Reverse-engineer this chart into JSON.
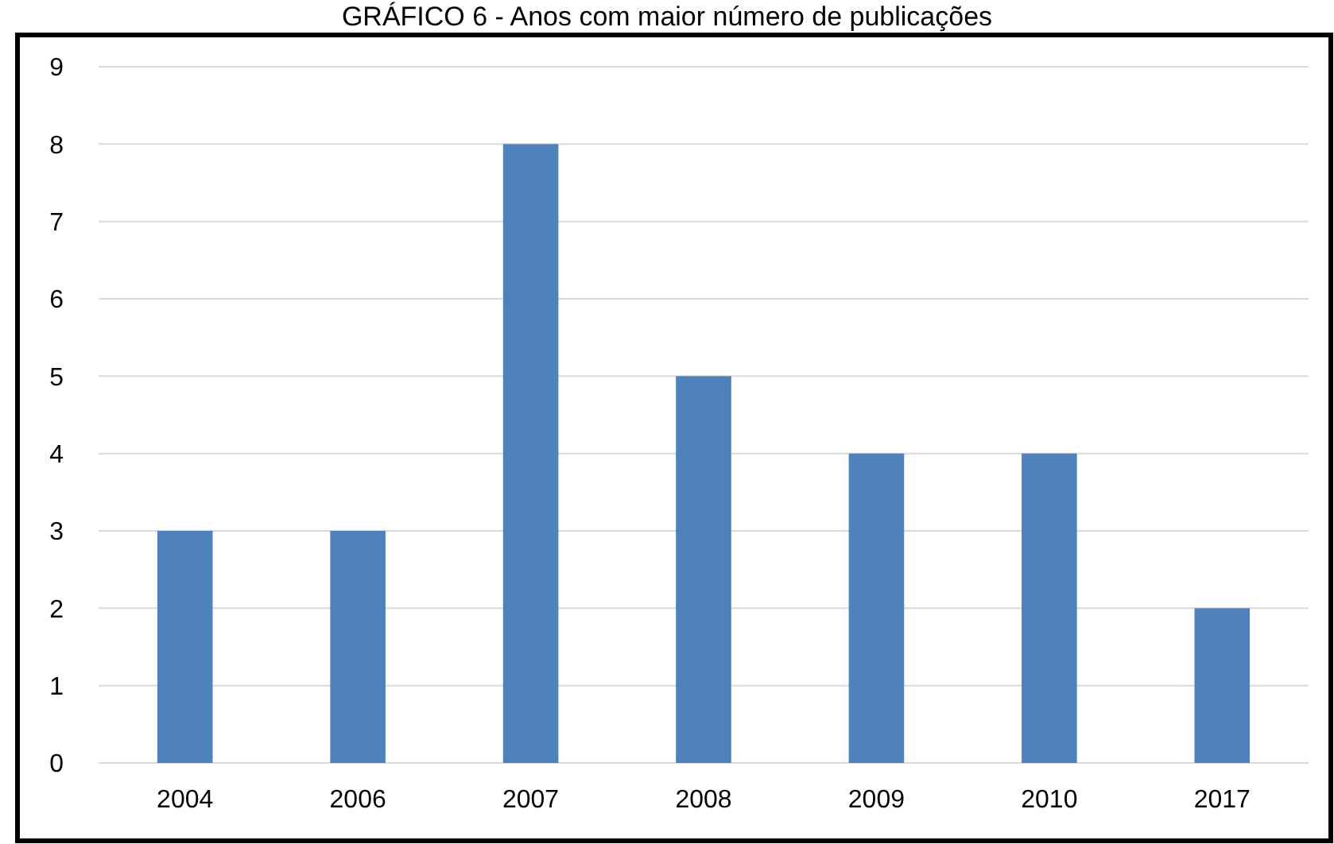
{
  "chart_data": {
    "type": "bar",
    "title": "GRÁFICO 6 - Anos com maior número de publicações",
    "categories": [
      "2004",
      "2006",
      "2007",
      "2008",
      "2009",
      "2010",
      "2017"
    ],
    "values": [
      3,
      3,
      8,
      5,
      4,
      4,
      2
    ],
    "color": "#4f81bd",
    "ylim": [
      0,
      9
    ],
    "yticks": [
      0,
      1,
      2,
      3,
      4,
      5,
      6,
      7,
      8,
      9
    ],
    "grid": "y"
  }
}
